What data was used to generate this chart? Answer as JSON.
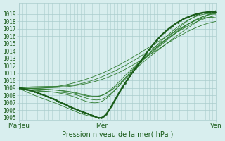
{
  "title": "",
  "xlabel": "Pression niveau de la mer( hPa )",
  "ylabel": "",
  "background_color": "#d8eeee",
  "grid_color": "#aacccc",
  "line_color_dark": "#1a5c1a",
  "line_color_thin": "#2d7a2d",
  "ylim": [
    1005,
    1020
  ],
  "yticks": [
    1005,
    1006,
    1007,
    1008,
    1009,
    1010,
    1011,
    1012,
    1013,
    1014,
    1015,
    1016,
    1017,
    1018,
    1019
  ],
  "xtick_labels": [
    "MarJeu",
    "Mer",
    "Ven"
  ],
  "xtick_positions": [
    0.0,
    0.42,
    1.0
  ],
  "xlim": [
    0,
    1
  ]
}
